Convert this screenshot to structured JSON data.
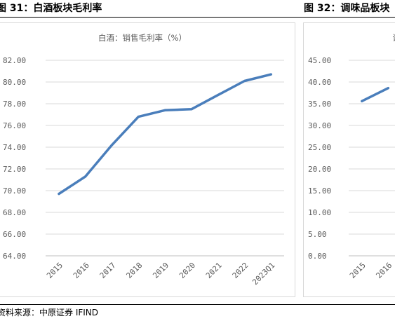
{
  "header": {
    "left_title": "图 31：白酒板块毛利率",
    "right_title": "图 32：调味品板块"
  },
  "source": "资料来源：中原证券 IFIND",
  "chart_data": [
    {
      "type": "line",
      "title": "白酒：销售毛利率（%）",
      "categories": [
        "2015",
        "2016",
        "2017",
        "2018",
        "2019",
        "2020",
        "2021",
        "2022",
        "2023Q1"
      ],
      "series": [
        {
          "values": [
            69.7,
            71.3,
            74.2,
            76.8,
            77.4,
            77.5,
            78.8,
            80.1,
            80.7
          ]
        }
      ],
      "ylim": [
        64,
        82
      ],
      "yticks": [
        "64.00",
        "66.00",
        "68.00",
        "70.00",
        "72.00",
        "74.00",
        "76.00",
        "78.00",
        "80.00",
        "82.00"
      ],
      "grid": true,
      "color": "#4a7ebb"
    },
    {
      "type": "line",
      "title": "调味",
      "categories": [
        "2015",
        "2016"
      ],
      "series": [
        {
          "values": [
            35.6,
            38.6
          ]
        }
      ],
      "ylim": [
        0,
        45
      ],
      "yticks": [
        "0.00",
        "5.00",
        "10.00",
        "15.00",
        "20.00",
        "25.00",
        "30.00",
        "35.00",
        "40.00",
        "45.00"
      ],
      "grid": true,
      "color": "#4a7ebb"
    }
  ]
}
